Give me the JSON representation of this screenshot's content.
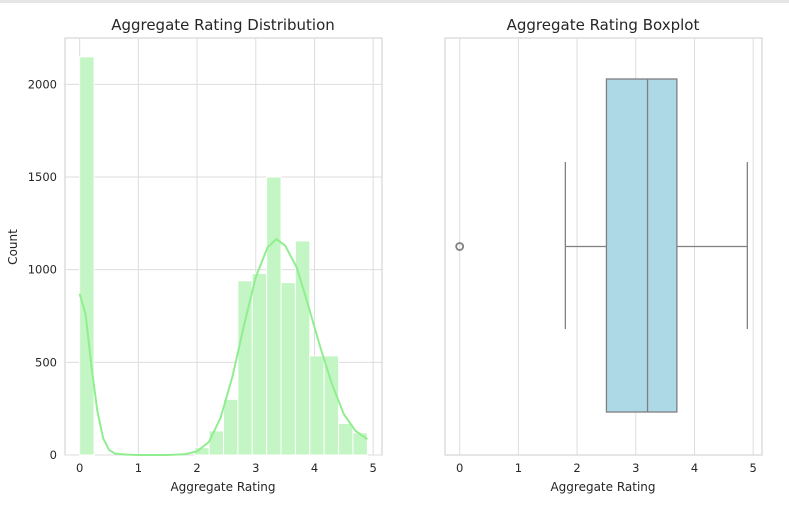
{
  "chart_data": [
    {
      "type": "bar",
      "title": "Aggregate Rating Distribution",
      "xlabel": "Aggregate Rating",
      "ylabel": "Count",
      "xlim": [
        -0.25,
        5.15
      ],
      "ylim": [
        0,
        2250
      ],
      "xticks": [
        0,
        1,
        2,
        3,
        4,
        5
      ],
      "yticks": [
        0,
        500,
        1000,
        1500,
        2000
      ],
      "bin_width": 0.245,
      "bins": [
        {
          "x": 0.0,
          "count": 2148
        },
        {
          "x": 2.45,
          "count": 0
        },
        {
          "x": 1.96,
          "count": 40
        },
        {
          "x": 2.205,
          "count": 130
        },
        {
          "x": 2.45,
          "count": 300
        },
        {
          "x": 2.695,
          "count": 940
        },
        {
          "x": 2.94,
          "count": 980
        },
        {
          "x": 3.185,
          "count": 1500
        },
        {
          "x": 3.43,
          "count": 930
        },
        {
          "x": 3.675,
          "count": 1155
        },
        {
          "x": 3.92,
          "count": 535
        },
        {
          "x": 4.165,
          "count": 535
        },
        {
          "x": 4.41,
          "count": 170
        },
        {
          "x": 4.655,
          "count": 120
        }
      ],
      "kde": {
        "x": [
          0.0,
          0.1,
          0.2,
          0.3,
          0.4,
          0.5,
          0.6,
          0.8,
          1.0,
          1.5,
          1.8,
          2.0,
          2.2,
          2.4,
          2.6,
          2.8,
          3.0,
          3.2,
          3.35,
          3.5,
          3.7,
          3.9,
          4.1,
          4.3,
          4.5,
          4.7,
          4.9
        ],
        "y": [
          870,
          760,
          480,
          240,
          90,
          28,
          8,
          2,
          0,
          0,
          5,
          20,
          70,
          200,
          420,
          700,
          960,
          1120,
          1165,
          1130,
          1010,
          800,
          580,
          380,
          220,
          130,
          85
        ]
      },
      "bar_color": "#c4f5c4",
      "kde_color": "#90ee90"
    },
    {
      "type": "box",
      "title": "Aggregate Rating Boxplot",
      "xlabel": "Aggregate Rating",
      "xlim": [
        -0.25,
        5.15
      ],
      "xticks": [
        0,
        1,
        2,
        3,
        4,
        5
      ],
      "stats": {
        "whislo": 1.8,
        "q1": 2.5,
        "med": 3.2,
        "q3": 3.7,
        "whishi": 4.9,
        "fliers": [
          0.0
        ]
      },
      "box_color": "#add8e6",
      "line_color": "#808080"
    }
  ]
}
